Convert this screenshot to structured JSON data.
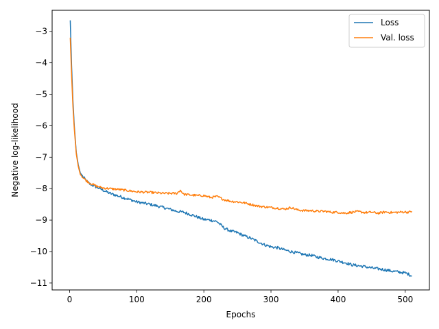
{
  "chart_data": {
    "type": "line",
    "xlabel": "Epochs",
    "ylabel": "Negative log-likelihood",
    "xlim": [
      -26,
      536
    ],
    "ylim": [
      -11.22,
      -2.33
    ],
    "xticks": [
      0,
      100,
      200,
      300,
      400,
      500
    ],
    "yticks": [
      -3,
      -4,
      -5,
      -6,
      -7,
      -8,
      -9,
      -10,
      -11
    ],
    "xtick_labels": [
      "0",
      "100",
      "200",
      "300",
      "400",
      "500"
    ],
    "ytick_labels": [
      "−3",
      "−4",
      "−5",
      "−6",
      "−7",
      "−8",
      "−9",
      "−10",
      "−11"
    ],
    "grid": false,
    "legend_position": "top-right",
    "series": [
      {
        "name": "Loss",
        "color": "#1f77b4",
        "x": [
          1,
          3,
          5,
          7,
          10,
          13,
          16,
          20,
          25,
          30,
          40,
          50,
          60,
          75,
          90,
          100,
          120,
          140,
          160,
          170,
          180,
          190,
          200,
          210,
          220,
          230,
          240,
          250,
          260,
          270,
          280,
          290,
          300,
          310,
          320,
          330,
          340,
          350,
          360,
          370,
          380,
          390,
          400,
          410,
          420,
          430,
          440,
          450,
          460,
          470,
          480,
          490,
          500,
          505,
          510
        ],
        "y": [
          -2.65,
          -4.1,
          -5.2,
          -6.0,
          -6.85,
          -7.25,
          -7.5,
          -7.62,
          -7.75,
          -7.85,
          -7.95,
          -8.05,
          -8.15,
          -8.25,
          -8.35,
          -8.42,
          -8.5,
          -8.6,
          -8.72,
          -8.75,
          -8.82,
          -8.9,
          -8.98,
          -9.0,
          -9.05,
          -9.25,
          -9.35,
          -9.4,
          -9.5,
          -9.58,
          -9.68,
          -9.78,
          -9.85,
          -9.88,
          -9.95,
          -10.0,
          -10.05,
          -10.1,
          -10.12,
          -10.18,
          -10.22,
          -10.25,
          -10.3,
          -10.35,
          -10.42,
          -10.45,
          -10.48,
          -10.52,
          -10.55,
          -10.58,
          -10.62,
          -10.65,
          -10.68,
          -10.72,
          -10.78
        ]
      },
      {
        "name": "Val. loss",
        "color": "#ff7f0e",
        "x": [
          1,
          3,
          5,
          7,
          10,
          13,
          16,
          20,
          25,
          30,
          40,
          50,
          60,
          75,
          90,
          100,
          120,
          140,
          160,
          165,
          170,
          180,
          190,
          200,
          210,
          220,
          230,
          240,
          250,
          260,
          270,
          280,
          290,
          300,
          310,
          320,
          330,
          340,
          350,
          360,
          370,
          380,
          390,
          400,
          410,
          420,
          430,
          440,
          450,
          460,
          470,
          480,
          490,
          500,
          505,
          510
        ],
        "y": [
          -3.2,
          -4.4,
          -5.4,
          -6.1,
          -6.9,
          -7.3,
          -7.55,
          -7.65,
          -7.75,
          -7.82,
          -7.92,
          -7.98,
          -8.0,
          -8.03,
          -8.07,
          -8.1,
          -8.12,
          -8.15,
          -8.15,
          -8.05,
          -8.18,
          -8.2,
          -8.22,
          -8.22,
          -8.28,
          -8.25,
          -8.35,
          -8.4,
          -8.42,
          -8.45,
          -8.5,
          -8.55,
          -8.58,
          -8.6,
          -8.62,
          -8.65,
          -8.6,
          -8.68,
          -8.7,
          -8.7,
          -8.72,
          -8.72,
          -8.75,
          -8.75,
          -8.78,
          -8.75,
          -8.73,
          -8.76,
          -8.75,
          -8.78,
          -8.74,
          -8.76,
          -8.75,
          -8.74,
          -8.75,
          -8.72
        ]
      }
    ]
  }
}
